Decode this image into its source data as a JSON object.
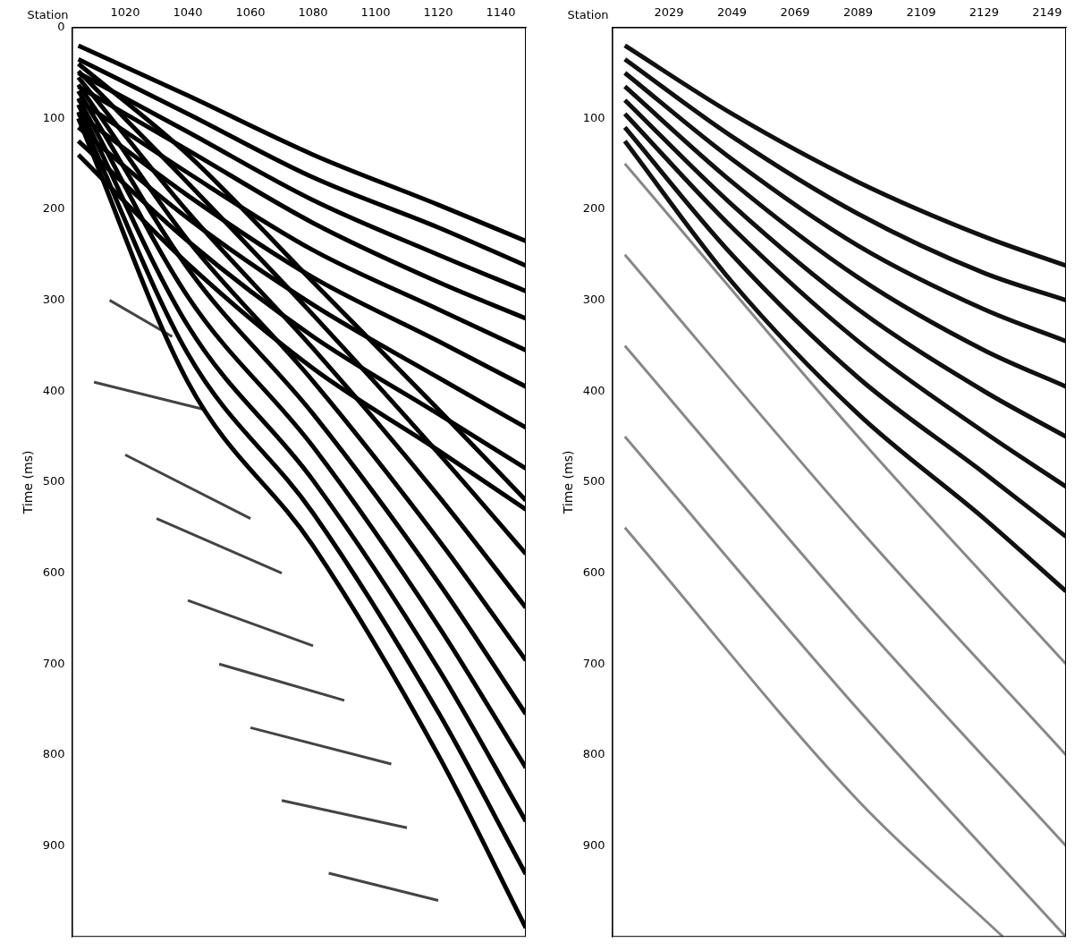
{
  "chart_data": [
    {
      "type": "line",
      "x_label": "Station",
      "y_label": "Time (ms)",
      "grid": false,
      "xlim": [
        1003,
        1148
      ],
      "xticks": [
        1020,
        1040,
        1060,
        1080,
        1100,
        1120,
        1140
      ],
      "ylim": [
        0,
        1000
      ],
      "yticks": [
        0,
        100,
        200,
        300,
        400,
        500,
        600,
        700,
        800,
        900
      ],
      "series": [
        {
          "color": "#000000",
          "x": [
            1005,
            1040,
            1080,
            1120,
            1148
          ],
          "values": [
            20,
            75,
            140,
            195,
            235
          ]
        },
        {
          "color": "#000000",
          "x": [
            1005,
            1040,
            1080,
            1120,
            1148
          ],
          "values": [
            35,
            95,
            165,
            220,
            262
          ]
        },
        {
          "color": "#000000",
          "x": [
            1005,
            1040,
            1080,
            1120,
            1148
          ],
          "values": [
            50,
            115,
            190,
            250,
            290
          ]
        },
        {
          "color": "#000000",
          "x": [
            1005,
            1040,
            1080,
            1120,
            1148
          ],
          "values": [
            65,
            135,
            215,
            280,
            320
          ]
        },
        {
          "color": "#000000",
          "x": [
            1005,
            1040,
            1080,
            1120,
            1148
          ],
          "values": [
            80,
            160,
            245,
            310,
            355
          ]
        },
        {
          "color": "#000000",
          "x": [
            1005,
            1040,
            1080,
            1120,
            1148
          ],
          "values": [
            95,
            185,
            275,
            345,
            395
          ]
        },
        {
          "color": "#000000",
          "x": [
            1005,
            1040,
            1080,
            1120,
            1148
          ],
          "values": [
            110,
            210,
            305,
            385,
            440
          ]
        },
        {
          "color": "#000000",
          "x": [
            1005,
            1040,
            1080,
            1120,
            1148
          ],
          "values": [
            125,
            235,
            340,
            425,
            485
          ]
        },
        {
          "color": "#000000",
          "x": [
            1005,
            1040,
            1080,
            1120,
            1148
          ],
          "values": [
            140,
            260,
            375,
            465,
            530
          ]
        },
        {
          "color": "#000000",
          "x": [
            1005,
            1040,
            1080,
            1120,
            1148
          ],
          "values": [
            40,
            140,
            280,
            420,
            520
          ]
        },
        {
          "color": "#000000",
          "x": [
            1005,
            1040,
            1080,
            1120,
            1148
          ],
          "values": [
            48,
            171,
            316,
            468,
            579
          ]
        },
        {
          "color": "#000000",
          "x": [
            1005,
            1040,
            1080,
            1120,
            1148
          ],
          "values": [
            55,
            203,
            353,
            515,
            638
          ]
        },
        {
          "color": "#000000",
          "x": [
            1005,
            1040,
            1080,
            1120,
            1148
          ],
          "values": [
            63,
            234,
            389,
            563,
            696
          ]
        },
        {
          "color": "#000000",
          "x": [
            1005,
            1040,
            1080,
            1120,
            1148
          ],
          "values": [
            70,
            265,
            425,
            610,
            755
          ]
        },
        {
          "color": "#000000",
          "x": [
            1005,
            1040,
            1080,
            1120,
            1148
          ],
          "values": [
            78,
            296,
            461,
            658,
            814
          ]
        },
        {
          "color": "#000000",
          "x": [
            1005,
            1040,
            1080,
            1120,
            1148
          ],
          "values": [
            85,
            328,
            498,
            705,
            873
          ]
        },
        {
          "color": "#000000",
          "x": [
            1005,
            1040,
            1080,
            1120,
            1148
          ],
          "values": [
            93,
            359,
            534,
            753,
            931
          ]
        },
        {
          "color": "#000000",
          "x": [
            1005,
            1040,
            1080,
            1120,
            1148
          ],
          "values": [
            100,
            390,
            570,
            800,
            990
          ]
        },
        {
          "color": "#444444",
          "x": [
            1015,
            1035
          ],
          "values": [
            300,
            340
          ]
        },
        {
          "color": "#444444",
          "x": [
            1010,
            1045
          ],
          "values": [
            390,
            420
          ]
        },
        {
          "color": "#444444",
          "x": [
            1020,
            1060
          ],
          "values": [
            470,
            540
          ]
        },
        {
          "color": "#444444",
          "x": [
            1030,
            1070
          ],
          "values": [
            540,
            600
          ]
        },
        {
          "color": "#444444",
          "x": [
            1040,
            1080
          ],
          "values": [
            630,
            680
          ]
        },
        {
          "color": "#444444",
          "x": [
            1050,
            1090
          ],
          "values": [
            700,
            740
          ]
        },
        {
          "color": "#444444",
          "x": [
            1060,
            1105
          ],
          "values": [
            770,
            810
          ]
        },
        {
          "color": "#444444",
          "x": [
            1070,
            1110
          ],
          "values": [
            850,
            880
          ]
        },
        {
          "color": "#444444",
          "x": [
            1085,
            1120
          ],
          "values": [
            930,
            960
          ]
        }
      ]
    },
    {
      "type": "line",
      "x_label": "Station",
      "y_label": "Time (ms)",
      "grid": false,
      "xlim": [
        2011,
        2155
      ],
      "xticks": [
        2029,
        2049,
        2069,
        2089,
        2109,
        2129,
        2149
      ],
      "ylim": [
        0,
        1000
      ],
      "yticks": [
        100,
        200,
        300,
        400,
        500,
        600,
        700,
        800,
        900
      ],
      "series": [
        {
          "color": "#111111",
          "x": [
            2015,
            2049,
            2089,
            2129,
            2155
          ],
          "values": [
            20,
            95,
            170,
            230,
            262
          ]
        },
        {
          "color": "#111111",
          "x": [
            2015,
            2049,
            2089,
            2129,
            2155
          ],
          "values": [
            35,
            120,
            205,
            270,
            300
          ]
        },
        {
          "color": "#111111",
          "x": [
            2015,
            2049,
            2089,
            2129,
            2155
          ],
          "values": [
            50,
            145,
            240,
            310,
            345
          ]
        },
        {
          "color": "#111111",
          "x": [
            2015,
            2049,
            2089,
            2129,
            2155
          ],
          "values": [
            65,
            170,
            275,
            355,
            395
          ]
        },
        {
          "color": "#111111",
          "x": [
            2015,
            2049,
            2089,
            2129,
            2155
          ],
          "values": [
            80,
            195,
            310,
            400,
            450
          ]
        },
        {
          "color": "#111111",
          "x": [
            2015,
            2049,
            2089,
            2129,
            2155
          ],
          "values": [
            95,
            220,
            345,
            445,
            505
          ]
        },
        {
          "color": "#111111",
          "x": [
            2015,
            2049,
            2089,
            2129,
            2155
          ],
          "values": [
            110,
            250,
            385,
            490,
            560
          ]
        },
        {
          "color": "#111111",
          "x": [
            2015,
            2049,
            2089,
            2129,
            2155
          ],
          "values": [
            125,
            280,
            425,
            540,
            620
          ]
        },
        {
          "color": "#888888",
          "x": [
            2015,
            2089,
            2155
          ],
          "values": [
            150,
            450,
            700
          ]
        },
        {
          "color": "#888888",
          "x": [
            2015,
            2089,
            2155
          ],
          "values": [
            250,
            550,
            800
          ]
        },
        {
          "color": "#888888",
          "x": [
            2015,
            2089,
            2155
          ],
          "values": [
            350,
            650,
            900
          ]
        },
        {
          "color": "#888888",
          "x": [
            2015,
            2089,
            2155
          ],
          "values": [
            450,
            750,
            1000
          ]
        },
        {
          "color": "#888888",
          "x": [
            2015,
            2089,
            2135
          ],
          "values": [
            550,
            850,
            1000
          ]
        }
      ]
    }
  ]
}
